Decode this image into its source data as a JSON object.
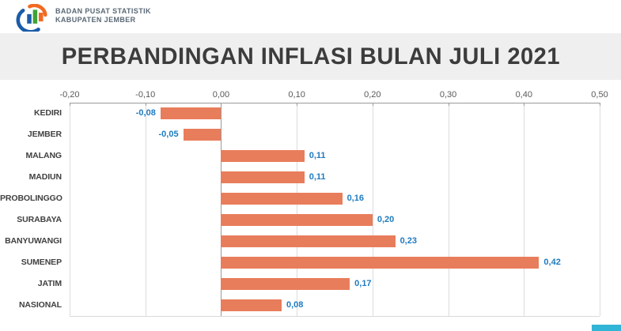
{
  "header": {
    "org_line1": "BADAN PUSAT STATISTIK",
    "org_line2": "KABUPATEN JEMBER",
    "logo_colors": {
      "blue": "#1b5ca8",
      "green": "#3da435",
      "orange": "#f26a21"
    }
  },
  "title": "PERBANDINGAN INFLASI BULAN JULI 2021",
  "chart_data": {
    "type": "bar",
    "orientation": "horizontal",
    "title": "PERBANDINGAN INFLASI BULAN JULI 2021",
    "categories": [
      "KEDIRI",
      "JEMBER",
      "MALANG",
      "MADIUN",
      "PROBOLINGGO",
      "SURABAYA",
      "BANYUWANGI",
      "SUMENEP",
      "JATIM",
      "NASIONAL"
    ],
    "values": [
      -0.08,
      -0.05,
      0.11,
      0.11,
      0.16,
      0.2,
      0.23,
      0.42,
      0.17,
      0.08
    ],
    "value_labels": [
      "-0,08",
      "-0,05",
      "0,11",
      "0,11",
      "0,16",
      "0,20",
      "0,23",
      "0,42",
      "0,17",
      "0,08"
    ],
    "x_ticks": [
      -0.2,
      -0.1,
      0.0,
      0.1,
      0.2,
      0.3,
      0.4,
      0.5
    ],
    "x_tick_labels": [
      "-0,20",
      "-0,10",
      "0,00",
      "0,10",
      "0,20",
      "0,30",
      "0,40",
      "0,50"
    ],
    "xlim": [
      -0.2,
      0.5
    ],
    "axis_position": "top",
    "grid": true,
    "legend": false,
    "bar_color": "#e87d5c",
    "value_label_color": "#1f7bc0",
    "category_label_color": "#404040"
  },
  "decor": {
    "corner_accent_color": "#31b5d6"
  }
}
